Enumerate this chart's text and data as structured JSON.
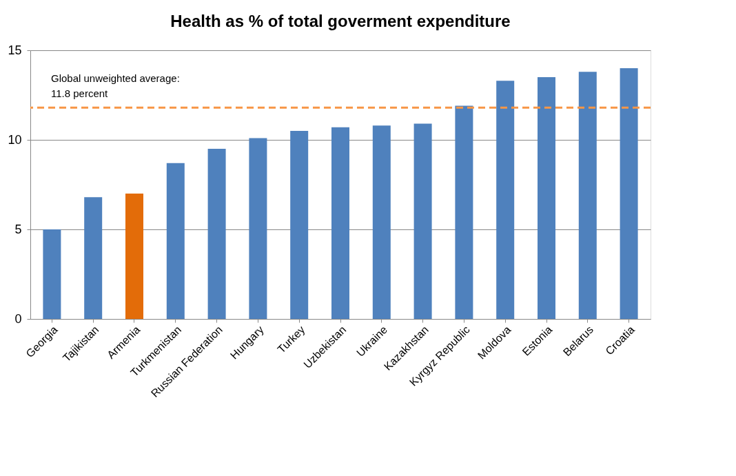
{
  "chart_data": {
    "type": "bar",
    "title": "Health as % of total goverment expenditure",
    "categories": [
      "Georgia",
      "Tajikistan",
      "Armenia",
      "Turkmenistan",
      "Russian Federation",
      "Hungary",
      "Turkey",
      "Uzbekistan",
      "Ukraine",
      "Kazakhstan",
      "Kyrgyz Republic",
      "Moldova",
      "Estonia",
      "Belarus",
      "Croatia"
    ],
    "values": [
      5.0,
      6.8,
      7.0,
      8.7,
      9.5,
      10.1,
      10.5,
      10.7,
      10.8,
      10.9,
      11.9,
      13.3,
      13.5,
      13.8,
      14.0
    ],
    "colors": [
      "#4f81bd",
      "#4f81bd",
      "#e36c09",
      "#4f81bd",
      "#4f81bd",
      "#4f81bd",
      "#4f81bd",
      "#4f81bd",
      "#4f81bd",
      "#4f81bd",
      "#4f81bd",
      "#4f81bd",
      "#4f81bd",
      "#4f81bd",
      "#4f81bd"
    ],
    "ylim": [
      0,
      15
    ],
    "yticks": [
      0,
      5,
      10,
      15
    ],
    "grid": "y",
    "ref_lines": [
      {
        "axis": "y",
        "value": 11.8,
        "label": "Global unweighted average:\n11.8 percent",
        "color": "#f79646",
        "line_style": "dashed"
      }
    ]
  }
}
